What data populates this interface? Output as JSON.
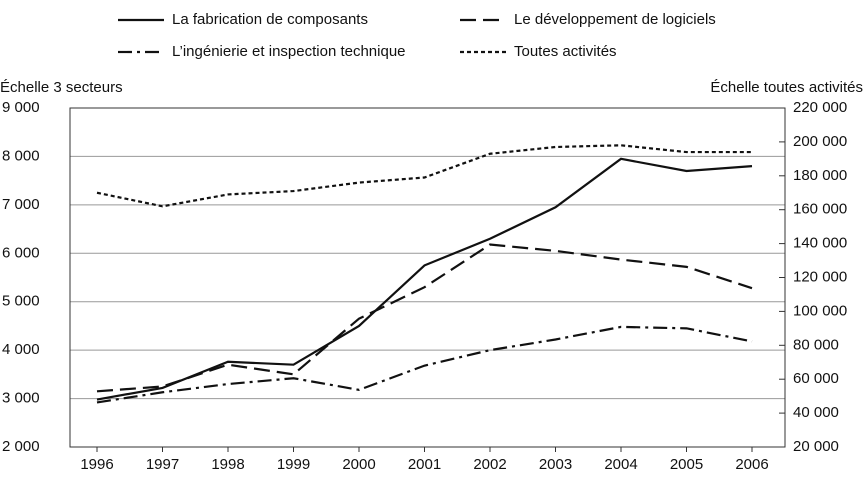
{
  "chart_data": {
    "type": "line",
    "y_label": "Échelle 3 secteurs",
    "y2_label": "Échelle toutes activités",
    "categories": [
      "1996",
      "1997",
      "1998",
      "1999",
      "2000",
      "2001",
      "2002",
      "2003",
      "2004",
      "2005",
      "2006"
    ],
    "ylim": [
      2000,
      9000
    ],
    "yticks": [
      {
        "value": 2000,
        "label": "2 000"
      },
      {
        "value": 3000,
        "label": "3 000"
      },
      {
        "value": 4000,
        "label": "4 000"
      },
      {
        "value": 5000,
        "label": "5 000"
      },
      {
        "value": 6000,
        "label": "6 000"
      },
      {
        "value": 7000,
        "label": "7 000"
      },
      {
        "value": 8000,
        "label": "8 000"
      },
      {
        "value": 9000,
        "label": "9 000"
      }
    ],
    "y2lim": [
      20000,
      220000
    ],
    "y2ticks": [
      {
        "value": 20000,
        "label": "20 000"
      },
      {
        "value": 40000,
        "label": "40 000"
      },
      {
        "value": 60000,
        "label": "60 000"
      },
      {
        "value": 80000,
        "label": "80 000"
      },
      {
        "value": 100000,
        "label": "100 000"
      },
      {
        "value": 120000,
        "label": "120 000"
      },
      {
        "value": 140000,
        "label": "140 000"
      },
      {
        "value": 160000,
        "label": "160 000"
      },
      {
        "value": 180000,
        "label": "180 000"
      },
      {
        "value": 200000,
        "label": "200 000"
      },
      {
        "value": 220000,
        "label": "220 000"
      }
    ],
    "grid": true,
    "series": [
      {
        "name": "La fabrication de composants",
        "color": "#111111",
        "dash": "solid",
        "values": [
          2980,
          3220,
          3760,
          3700,
          4500,
          5750,
          6300,
          6950,
          7950,
          7700,
          7800
        ]
      },
      {
        "name": "Le développement de logiciels",
        "color": "#111111",
        "dash": "dashed",
        "values": [
          3150,
          3250,
          3700,
          3500,
          4650,
          5300,
          6180,
          6050,
          5870,
          5720,
          5280
        ]
      },
      {
        "name": "L’ingénierie et inspection technique",
        "color": "#111111",
        "dash": "dashdot",
        "values": [
          2920,
          3130,
          3300,
          3420,
          3180,
          3680,
          4000,
          4220,
          4480,
          4450,
          4180
        ]
      },
      {
        "name": "Toutes activités",
        "color": "#111111",
        "dash": "dotted",
        "axis": "y2",
        "values": [
          170000,
          162000,
          169000,
          171000,
          176000,
          179000,
          193000,
          197000,
          198000,
          194000,
          194000
        ]
      }
    ]
  }
}
